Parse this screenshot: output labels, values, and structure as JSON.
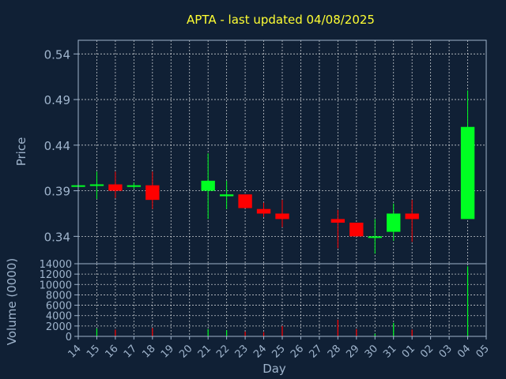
{
  "chart_data": [
    {
      "type": "candlestick",
      "title": "APTA - last updated 04/08/2025",
      "ylabel": "Price",
      "ylim": [
        0.31,
        0.555
      ],
      "yticks": [
        "0.34",
        "0.39",
        "0.44",
        "0.49",
        "0.54"
      ],
      "grid": true,
      "up_color": "#00ff22",
      "down_color": "#ff0000",
      "candles": [
        {
          "day": "14",
          "open": 0.396,
          "close": 0.396,
          "high": 0.396,
          "low": 0.396
        },
        {
          "day": "15",
          "open": 0.396,
          "close": 0.397,
          "high": 0.411,
          "low": 0.381
        },
        {
          "day": "16",
          "open": 0.397,
          "close": 0.39,
          "high": 0.411,
          "low": 0.382
        },
        {
          "day": "17",
          "open": 0.395,
          "close": 0.396,
          "high": 0.399,
          "low": 0.392
        },
        {
          "day": "18",
          "open": 0.396,
          "close": 0.38,
          "high": 0.411,
          "low": 0.37
        },
        {
          "day": "21",
          "open": 0.39,
          "close": 0.401,
          "high": 0.431,
          "low": 0.359
        },
        {
          "day": "22",
          "open": 0.384,
          "close": 0.386,
          "high": 0.401,
          "low": 0.37
        },
        {
          "day": "23",
          "open": 0.386,
          "close": 0.371,
          "high": 0.386,
          "low": 0.371
        },
        {
          "day": "24",
          "open": 0.37,
          "close": 0.365,
          "high": 0.377,
          "low": 0.361
        },
        {
          "day": "25",
          "open": 0.365,
          "close": 0.359,
          "high": 0.38,
          "low": 0.35
        },
        {
          "day": "28",
          "open": 0.359,
          "close": 0.355,
          "high": 0.369,
          "low": 0.327
        },
        {
          "day": "29",
          "open": 0.355,
          "close": 0.34,
          "high": 0.355,
          "low": 0.34
        },
        {
          "day": "30",
          "open": 0.339,
          "close": 0.34,
          "high": 0.359,
          "low": 0.321
        },
        {
          "day": "31",
          "open": 0.345,
          "close": 0.365,
          "high": 0.376,
          "low": 0.335
        },
        {
          "day": "01",
          "open": 0.365,
          "close": 0.359,
          "high": 0.38,
          "low": 0.334
        },
        {
          "day": "04",
          "open": 0.359,
          "close": 0.46,
          "high": 0.5,
          "low": 0.359
        }
      ]
    },
    {
      "type": "bar",
      "ylabel": "Volume (0000)",
      "xlabel": "Day",
      "ylim": [
        0,
        14000
      ],
      "yticks": [
        "0",
        "2000",
        "4000",
        "6000",
        "8000",
        "10000",
        "12000",
        "14000"
      ],
      "categories": [
        "14",
        "15",
        "16",
        "17",
        "18",
        "19",
        "20",
        "21",
        "22",
        "23",
        "24",
        "25",
        "26",
        "27",
        "28",
        "29",
        "30",
        "31",
        "01",
        "02",
        "03",
        "04",
        "05"
      ],
      "volume": [
        {
          "day": "15",
          "value": 1500,
          "color": "#00ff22"
        },
        {
          "day": "16",
          "value": 1300,
          "color": "#ff0000"
        },
        {
          "day": "18",
          "value": 1600,
          "color": "#ff0000"
        },
        {
          "day": "21",
          "value": 1400,
          "color": "#00ff22"
        },
        {
          "day": "22",
          "value": 1200,
          "color": "#00ff22"
        },
        {
          "day": "23",
          "value": 900,
          "color": "#ff0000"
        },
        {
          "day": "24",
          "value": 800,
          "color": "#ff0000"
        },
        {
          "day": "25",
          "value": 2000,
          "color": "#ff0000"
        },
        {
          "day": "28",
          "value": 3200,
          "color": "#ff0000"
        },
        {
          "day": "29",
          "value": 1400,
          "color": "#ff0000"
        },
        {
          "day": "30",
          "value": 500,
          "color": "#00ff22"
        },
        {
          "day": "31",
          "value": 2600,
          "color": "#00ff22"
        },
        {
          "day": "01",
          "value": 1300,
          "color": "#ff0000"
        },
        {
          "day": "04",
          "value": 13500,
          "color": "#00ff22"
        }
      ]
    }
  ]
}
